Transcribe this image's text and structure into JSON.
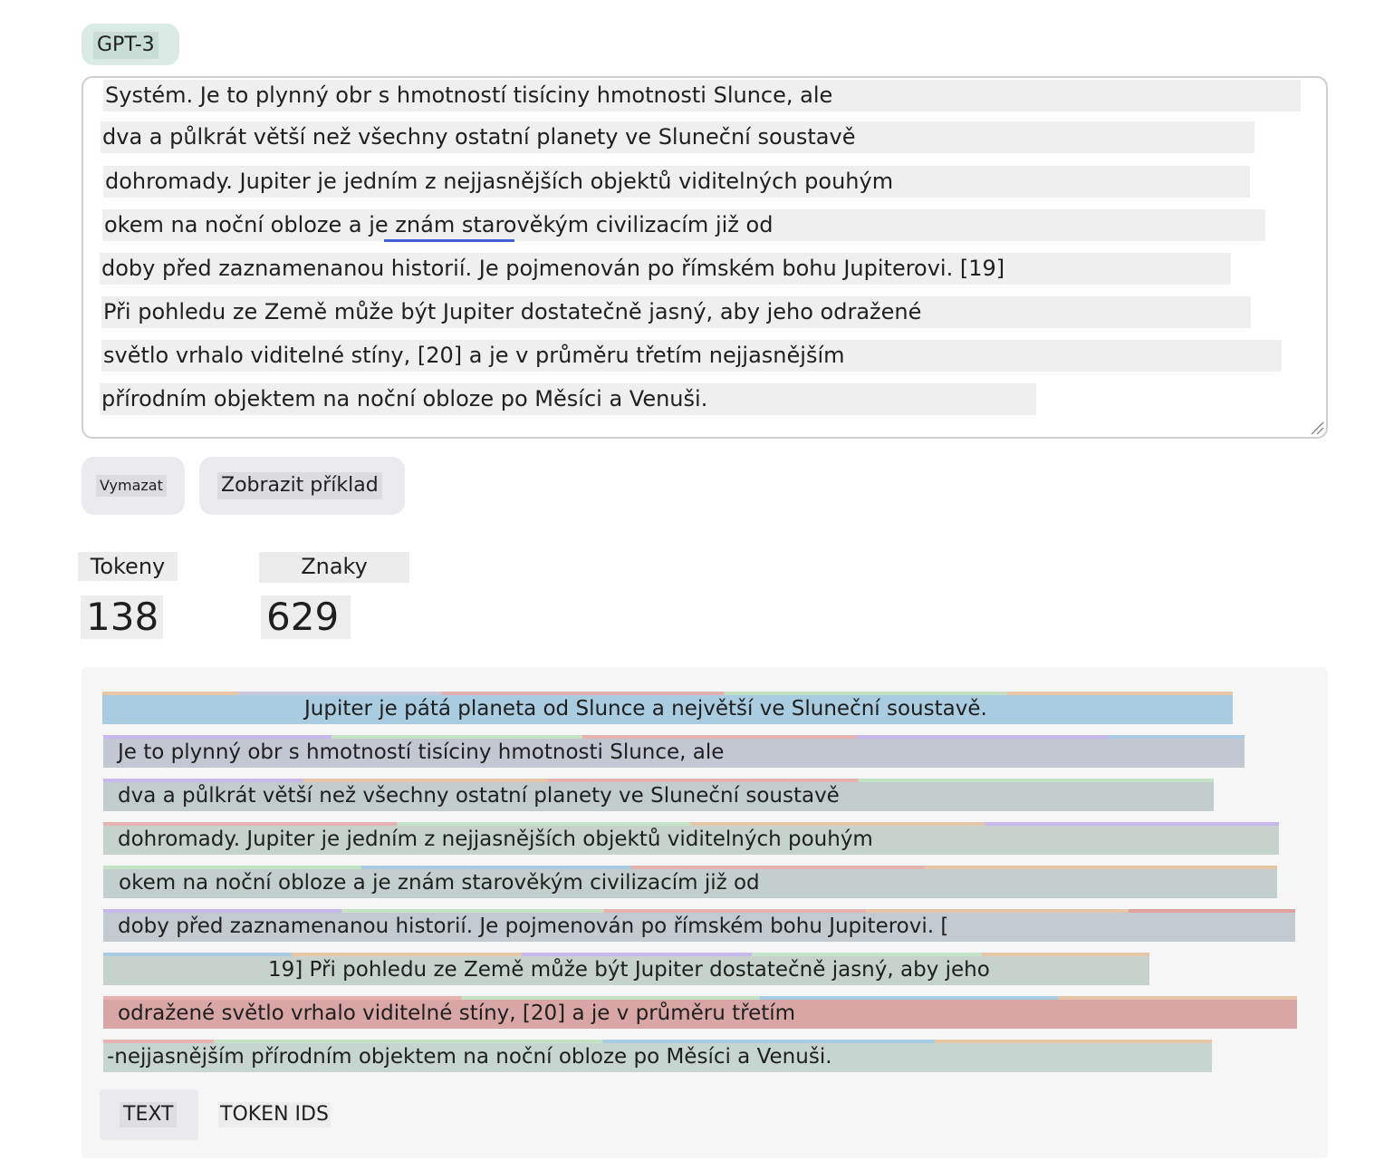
{
  "model": {
    "label": "GPT-3"
  },
  "input": {
    "lines": [
      "Systém. Je to plynný obr s hmotností tisíciny hmotnosti Slunce, ale",
      "dva a půlkrát větší než všechny ostatní planety ve Sluneční soustavě",
      "dohromady. Jupiter je jedním z nejjasnějších objektů viditelných pouhým",
      "okem na noční obloze a je znám starověkým civilizacím již od",
      "doby před zaznamenanou historií. Je pojmenován po římském bohu Jupiterovi. [19]",
      "Při pohledu ze Země může být Jupiter dostatečně jasný, aby jeho odražené",
      "světlo vrhalo viditelné stíny, [20] a je v průměru třetím nejjasnějším",
      "přírodním objektem na noční obloze po Měsíci a Venuši."
    ]
  },
  "buttons": {
    "clear": "Vymazat",
    "example": "Zobrazit příklad"
  },
  "stats": {
    "tokens_label": "Tokeny",
    "tokens_value": "138",
    "chars_label": "Znaky",
    "chars_value": "629"
  },
  "tokenized": {
    "lines": [
      "Jupiter je pátá planeta od Slunce a největší ve Sluneční soustavě.",
      "Je to plynný obr s hmotností tisíciny hmotnosti Slunce, ale",
      "dva a půlkrát větší než všechny ostatní planety ve Sluneční soustavě",
      "dohromady. Jupiter je jedním z nejjasnějších objektů viditelných pouhým",
      "okem na noční obloze a je znám starověkým civilizacím již od",
      "doby před zaznamenanou historií. Je pojmenován po římském bohu Jupiterovi. [",
      "19] Při pohledu ze Země může být Jupiter dostatečně jasný, aby jeho",
      "odražené světlo vrhalo viditelné stíny, [20] a je v průměru třetím",
      "-nejjasnějším přírodním objektem na noční obloze po Měsíci a Venuši."
    ],
    "token_colors": [
      "#6b40d8",
      "#68de7a",
      "#f4ac36",
      "#ef4146",
      "#27b5ea"
    ]
  },
  "tabs": {
    "text": "TEXT",
    "token_ids": "TOKEN IDS"
  }
}
